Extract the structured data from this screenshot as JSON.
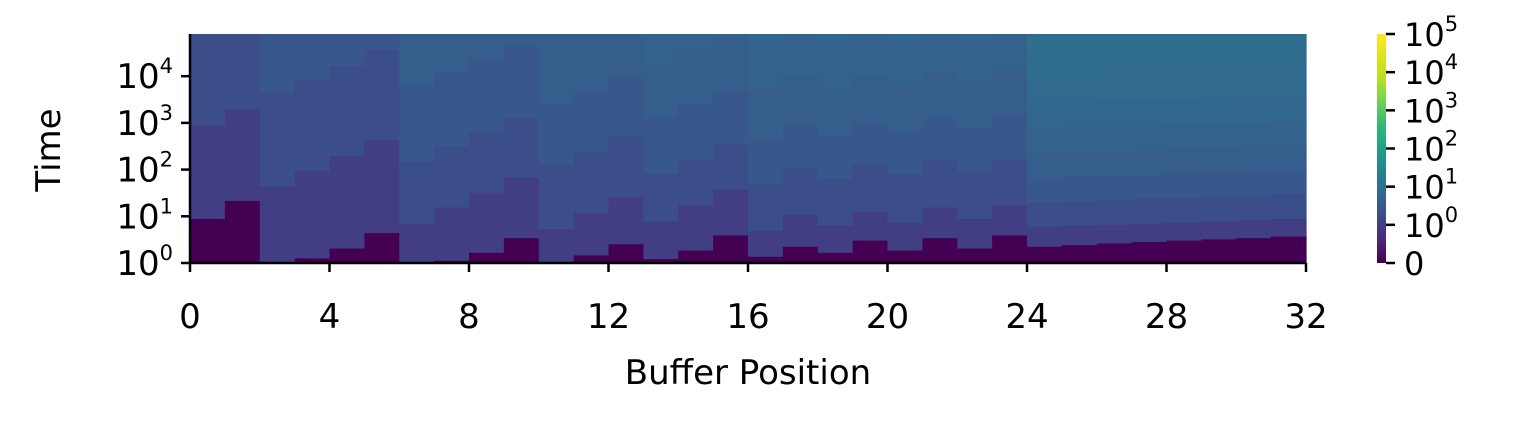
{
  "chart_data": {
    "type": "heatmap",
    "title": "",
    "xlabel": "Buffer Position",
    "ylabel": "Time",
    "x_ticks": [
      0,
      4,
      8,
      12,
      16,
      20,
      24,
      28,
      32
    ],
    "x_range": [
      0,
      32
    ],
    "y_scale": "log",
    "y_range": [
      1,
      80000
    ],
    "y_ticks": [
      {
        "base": "10",
        "exp": "0",
        "value": 1
      },
      {
        "base": "10",
        "exp": "1",
        "value": 10
      },
      {
        "base": "10",
        "exp": "2",
        "value": 100
      },
      {
        "base": "10",
        "exp": "3",
        "value": 1000
      },
      {
        "base": "10",
        "exp": "4",
        "value": 10000
      }
    ],
    "colormap": "viridis",
    "colorbar": {
      "scale": "symlog",
      "ticks": [
        {
          "base": "0",
          "exp": "",
          "value": 0
        },
        {
          "base": "10",
          "exp": "0",
          "value": 1
        },
        {
          "base": "10",
          "exp": "1",
          "value": 10
        },
        {
          "base": "10",
          "exp": "2",
          "value": 100
        },
        {
          "base": "10",
          "exp": "3",
          "value": 1000
        },
        {
          "base": "10",
          "exp": "4",
          "value": 10000
        },
        {
          "base": "10",
          "exp": "5",
          "value": 100000
        }
      ]
    },
    "columns": [
      {
        "x": 0,
        "boundaries": [
          9,
          900,
          80000
        ]
      },
      {
        "x": 1,
        "boundaries": [
          22,
          2000,
          80000
        ]
      },
      {
        "x": 2,
        "boundaries": [
          1.03,
          45,
          4500,
          80000
        ]
      },
      {
        "x": 3,
        "boundaries": [
          1.3,
          95,
          8500,
          80000
        ]
      },
      {
        "x": 4,
        "boundaries": [
          2.1,
          200,
          17000,
          80000
        ]
      },
      {
        "x": 5,
        "boundaries": [
          4.5,
          440,
          38000,
          80000
        ]
      },
      {
        "x": 6,
        "boundaries": [
          1.02,
          7,
          150,
          6200,
          80000
        ]
      },
      {
        "x": 7,
        "boundaries": [
          1.15,
          16,
          320,
          12500,
          80000
        ]
      },
      {
        "x": 8,
        "boundaries": [
          1.7,
          33,
          650,
          24000,
          80000
        ]
      },
      {
        "x": 9,
        "boundaries": [
          3.5,
          68,
          1300,
          45000,
          80000
        ]
      },
      {
        "x": 10,
        "boundaries": [
          1.08,
          5.5,
          130,
          2500,
          80000
        ]
      },
      {
        "x": 11,
        "boundaries": [
          1.5,
          12,
          250,
          5000,
          80000
        ]
      },
      {
        "x": 12,
        "boundaries": [
          2.6,
          26,
          520,
          10000,
          80000
        ]
      },
      {
        "x": 13,
        "boundaries": [
          1.25,
          8,
          85,
          1300,
          20000,
          80000
        ]
      },
      {
        "x": 14,
        "boundaries": [
          1.9,
          18,
          170,
          2600,
          38000,
          80000
        ]
      },
      {
        "x": 15,
        "boundaries": [
          4,
          38,
          360,
          5000,
          70000
        ]
      },
      {
        "x": 16,
        "boundaries": [
          1.4,
          5,
          50,
          450,
          5500,
          62000
        ]
      },
      {
        "x": 17,
        "boundaries": [
          2.3,
          11,
          110,
          900,
          11000,
          80000
        ]
      },
      {
        "x": 18,
        "boundaries": [
          1.7,
          6.5,
          65,
          500,
          5000,
          45000
        ]
      },
      {
        "x": 19,
        "boundaries": [
          3.1,
          13,
          130,
          1000,
          10000,
          80000
        ]
      },
      {
        "x": 20,
        "boundaries": [
          1.9,
          7.5,
          80,
          650,
          6500,
          60000
        ]
      },
      {
        "x": 21,
        "boundaries": [
          3.5,
          16,
          160,
          1300,
          13000,
          80000
        ]
      },
      {
        "x": 22,
        "boundaries": [
          2.1,
          9,
          90,
          800,
          7500,
          65000
        ]
      },
      {
        "x": 23,
        "boundaries": [
          4,
          18,
          170,
          1500,
          14000,
          80000
        ]
      },
      {
        "x": 24,
        "boundaries": [
          2.3,
          6,
          20,
          65,
          230,
          800,
          2800,
          9500,
          33000
        ]
      },
      {
        "x": 25,
        "boundaries": [
          2.5,
          6.4,
          21.5,
          70,
          245,
          840,
          2900,
          10000,
          35000
        ]
      },
      {
        "x": 26,
        "boundaries": [
          2.7,
          6.8,
          23,
          75,
          260,
          880,
          3050,
          10500,
          37000
        ]
      },
      {
        "x": 27,
        "boundaries": [
          2.9,
          7.2,
          24.5,
          80,
          275,
          920,
          3200,
          11000,
          39000
        ]
      },
      {
        "x": 28,
        "boundaries": [
          3.1,
          7.6,
          26,
          85,
          290,
          960,
          3350,
          11500,
          41000
        ]
      },
      {
        "x": 29,
        "boundaries": [
          3.3,
          8,
          27.5,
          90,
          305,
          1000,
          3500,
          12000,
          43000
        ]
      },
      {
        "x": 30,
        "boundaries": [
          3.5,
          8.4,
          29,
          95,
          320,
          1040,
          3650,
          12500,
          45000
        ]
      },
      {
        "x": 31,
        "boundaries": [
          3.8,
          9,
          31,
          100,
          340,
          1100,
          3800,
          13000,
          47000
        ]
      }
    ]
  }
}
